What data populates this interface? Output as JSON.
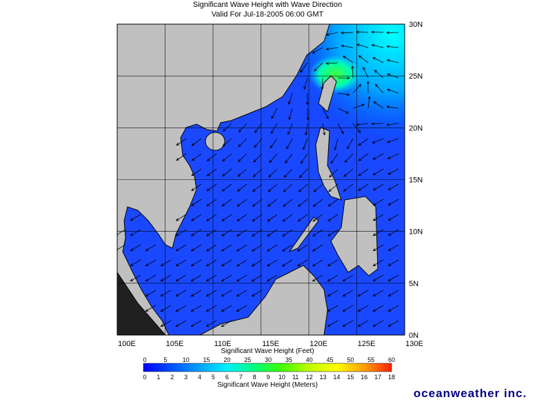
{
  "header": {
    "title": "Significant Wave Height with Wave Direction",
    "subtitle": "Valid For Jul-18-2005 06:00 GMT"
  },
  "map": {
    "lon_labels": [
      "100E",
      "105E",
      "110E",
      "115E",
      "120E",
      "125E",
      "130E"
    ],
    "lat_labels": [
      "0N",
      "5N",
      "10N",
      "15N",
      "20N",
      "25N",
      "30N"
    ]
  },
  "colorbar": {
    "feet_title": "Significant Wave Height (Feet)",
    "meters_title": "Significant Wave Height (Meters)",
    "feet_ticks": [
      "0",
      "5",
      "10",
      "15",
      "20",
      "25",
      "30",
      "35",
      "40",
      "45",
      "50",
      "55",
      "60"
    ],
    "meters_ticks": [
      "0",
      "1",
      "2",
      "3",
      "4",
      "5",
      "6",
      "7",
      "8",
      "9",
      "10",
      "11",
      "12",
      "13",
      "14",
      "15",
      "16",
      "17",
      "18"
    ],
    "colors": [
      "#0000ff",
      "#0050ff",
      "#00a0ff",
      "#00f0ff",
      "#00ff80",
      "#40ff00",
      "#c0ff00",
      "#ffff00",
      "#ffa000",
      "#ff2000"
    ]
  },
  "footer": {
    "logo": "oceanweather inc."
  }
}
